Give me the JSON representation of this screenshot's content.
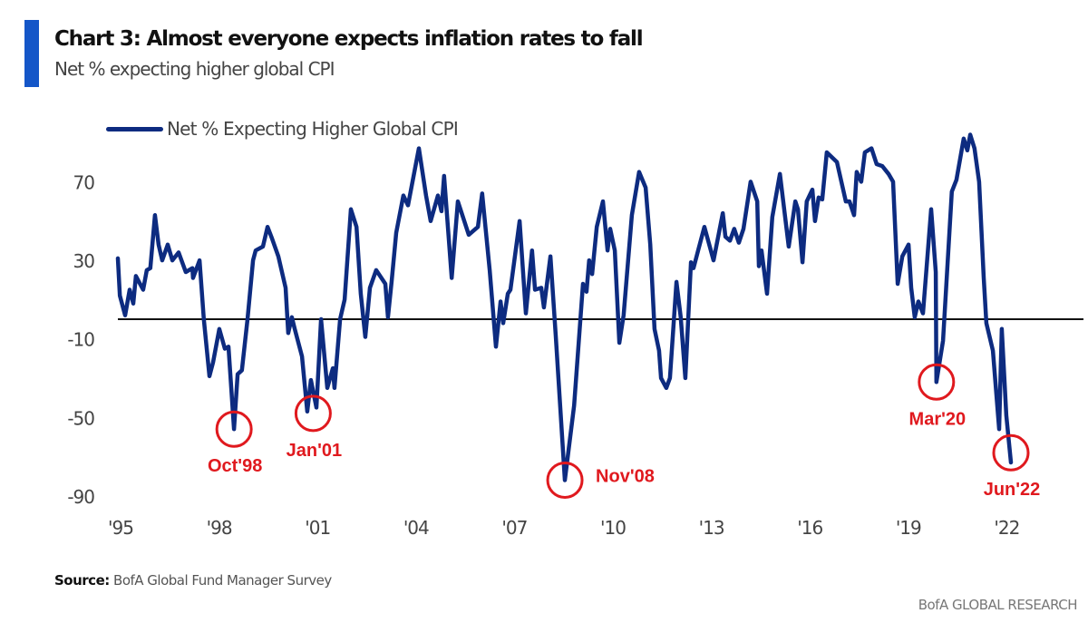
{
  "header": {
    "title": "Chart 3: Almost everyone expects inflation rates to fall",
    "subtitle": "Net % expecting higher global CPI",
    "accent_color": "#1456c8"
  },
  "footer": {
    "source_label": "Source:",
    "source_text": "BofA Global Fund Manager Survey",
    "brand": "BofA GLOBAL RESEARCH"
  },
  "chart_data": {
    "type": "line",
    "title": "Chart 3: Almost everyone expects inflation rates to fall",
    "subtitle": "Net % expecting higher global CPI",
    "xlabel": "",
    "ylabel": "",
    "xlim": [
      1995,
      2024.2
    ],
    "ylim": [
      -95,
      97
    ],
    "x_ticks": [
      1995,
      1998,
      2001,
      2004,
      2007,
      2010,
      2013,
      2016,
      2019,
      2022
    ],
    "x_tick_labels": [
      "'95",
      "'98",
      "'01",
      "'04",
      "'07",
      "'10",
      "'13",
      "'16",
      "'19",
      "'22"
    ],
    "y_ticks": [
      70,
      30,
      -10,
      -50,
      -90
    ],
    "y_tick_labels": [
      "70",
      "30",
      "-10",
      "-50",
      "-90"
    ],
    "reference_line": 0,
    "grid": false,
    "legend_position": "top-left",
    "series": [
      {
        "name": "Net % Expecting Higher Global CPI",
        "color": "#0d2b80",
        "x": [
          1995.0,
          1995.06,
          1995.22,
          1995.36,
          1995.47,
          1995.55,
          1995.77,
          1995.88,
          1995.99,
          1996.13,
          1996.24,
          1996.35,
          1996.52,
          1996.66,
          1996.85,
          1997.07,
          1997.27,
          1997.29,
          1997.49,
          1997.62,
          1997.79,
          1997.9,
          1998.09,
          1998.26,
          1998.37,
          1998.54,
          1998.65,
          1998.78,
          1998.95,
          1999.12,
          1999.2,
          1999.42,
          1999.56,
          1999.7,
          1999.89,
          2000.11,
          2000.19,
          2000.3,
          2000.39,
          2000.61,
          2000.77,
          2000.88,
          2001.05,
          2001.19,
          2001.38,
          2001.55,
          2001.6,
          2001.77,
          2001.91,
          2002.1,
          2002.27,
          2002.4,
          2002.54,
          2002.68,
          2002.87,
          2003.15,
          2003.23,
          2003.34,
          2003.48,
          2003.7,
          2003.84,
          2004.17,
          2004.39,
          2004.53,
          2004.75,
          2004.86,
          2004.94,
          2005.17,
          2005.36,
          2005.69,
          2005.97,
          2006.1,
          2006.33,
          2006.52,
          2006.66,
          2006.74,
          2006.88,
          2006.96,
          2007.24,
          2007.43,
          2007.62,
          2007.71,
          2007.9,
          2007.98,
          2008.18,
          2008.34,
          2008.62,
          2008.9,
          2009.17,
          2009.28,
          2009.36,
          2009.45,
          2009.59,
          2009.78,
          2009.92,
          2010.0,
          2010.14,
          2010.28,
          2010.41,
          2010.66,
          2010.88,
          2011.08,
          2011.22,
          2011.35,
          2011.49,
          2011.55,
          2011.71,
          2011.82,
          2012.02,
          2012.15,
          2012.29,
          2012.46,
          2012.54,
          2012.68,
          2012.87,
          2013.15,
          2013.43,
          2013.51,
          2013.65,
          2013.78,
          2013.92,
          2014.06,
          2014.28,
          2014.48,
          2014.53,
          2014.61,
          2014.78,
          2014.94,
          2015.17,
          2015.44,
          2015.64,
          2015.72,
          2015.86,
          2015.99,
          2016.16,
          2016.24,
          2016.35,
          2016.46,
          2016.6,
          2016.91,
          2017.18,
          2017.29,
          2017.43,
          2017.51,
          2017.65,
          2017.76,
          2017.96,
          2018.12,
          2018.29,
          2018.48,
          2018.62,
          2018.76,
          2018.9,
          2019.09,
          2019.17,
          2019.28,
          2019.39,
          2019.53,
          2019.78,
          2019.92,
          2019.94,
          2020.14,
          2020.41,
          2020.55,
          2020.77,
          2020.88,
          2020.97,
          2021.1,
          2021.24,
          2021.38,
          2021.46,
          2021.66,
          2021.85,
          2021.93,
          2022.07,
          2022.21
        ],
        "values": [
          31,
          12,
          2,
          15,
          8,
          22,
          15,
          25,
          26,
          53,
          38,
          30,
          38,
          30,
          34,
          24,
          26,
          21,
          30,
          0,
          -29,
          -22,
          -5,
          -15,
          -14,
          -56,
          -28,
          -26,
          0,
          30,
          35,
          37,
          47,
          41,
          32,
          16,
          -7,
          1,
          -5,
          -19,
          -47,
          -31,
          -45,
          0,
          -35,
          -25,
          -35,
          0,
          10,
          56,
          47,
          13,
          -9,
          16,
          25,
          18,
          1,
          19,
          44,
          63,
          58,
          87,
          63,
          50,
          63,
          55,
          73,
          21,
          60,
          43,
          47,
          64,
          25,
          -14,
          9,
          -2,
          13,
          15,
          50,
          3,
          35,
          15,
          16,
          6,
          32,
          -8,
          -82,
          -44,
          18,
          14,
          30,
          23,
          47,
          60,
          35,
          46,
          35,
          -12,
          2,
          53,
          75,
          67,
          38,
          -5,
          -16,
          -30,
          -35,
          -30,
          19,
          1,
          -30,
          29,
          26,
          35,
          47,
          30,
          54,
          42,
          40,
          46,
          39,
          46,
          70,
          60,
          27,
          35,
          13,
          52,
          74,
          37,
          60,
          56,
          29,
          60,
          66,
          50,
          62,
          61,
          85,
          80,
          60,
          60,
          53,
          75,
          70,
          85,
          87,
          79,
          78,
          74,
          70,
          18,
          32,
          38,
          16,
          1,
          9,
          3,
          56,
          24,
          -32,
          -11,
          65,
          71,
          92,
          86,
          94,
          87,
          70,
          21,
          -2,
          -16,
          -56,
          -5,
          -49,
          -73
        ]
      }
    ],
    "annotations": [
      {
        "label": "Oct'98",
        "x": 1998.54,
        "y": -56,
        "label_side": "below"
      },
      {
        "label": "Jan'01",
        "x": 2000.95,
        "y": -48,
        "label_side": "below"
      },
      {
        "label": "Nov'08",
        "x": 2008.62,
        "y": -82,
        "label_side": "right"
      },
      {
        "label": "Mar'20",
        "x": 2019.94,
        "y": -32,
        "label_side": "below"
      },
      {
        "label": "Jun'22",
        "x": 2022.21,
        "y": -68,
        "label_side": "below"
      }
    ],
    "annotation_color": "#e0191e"
  }
}
